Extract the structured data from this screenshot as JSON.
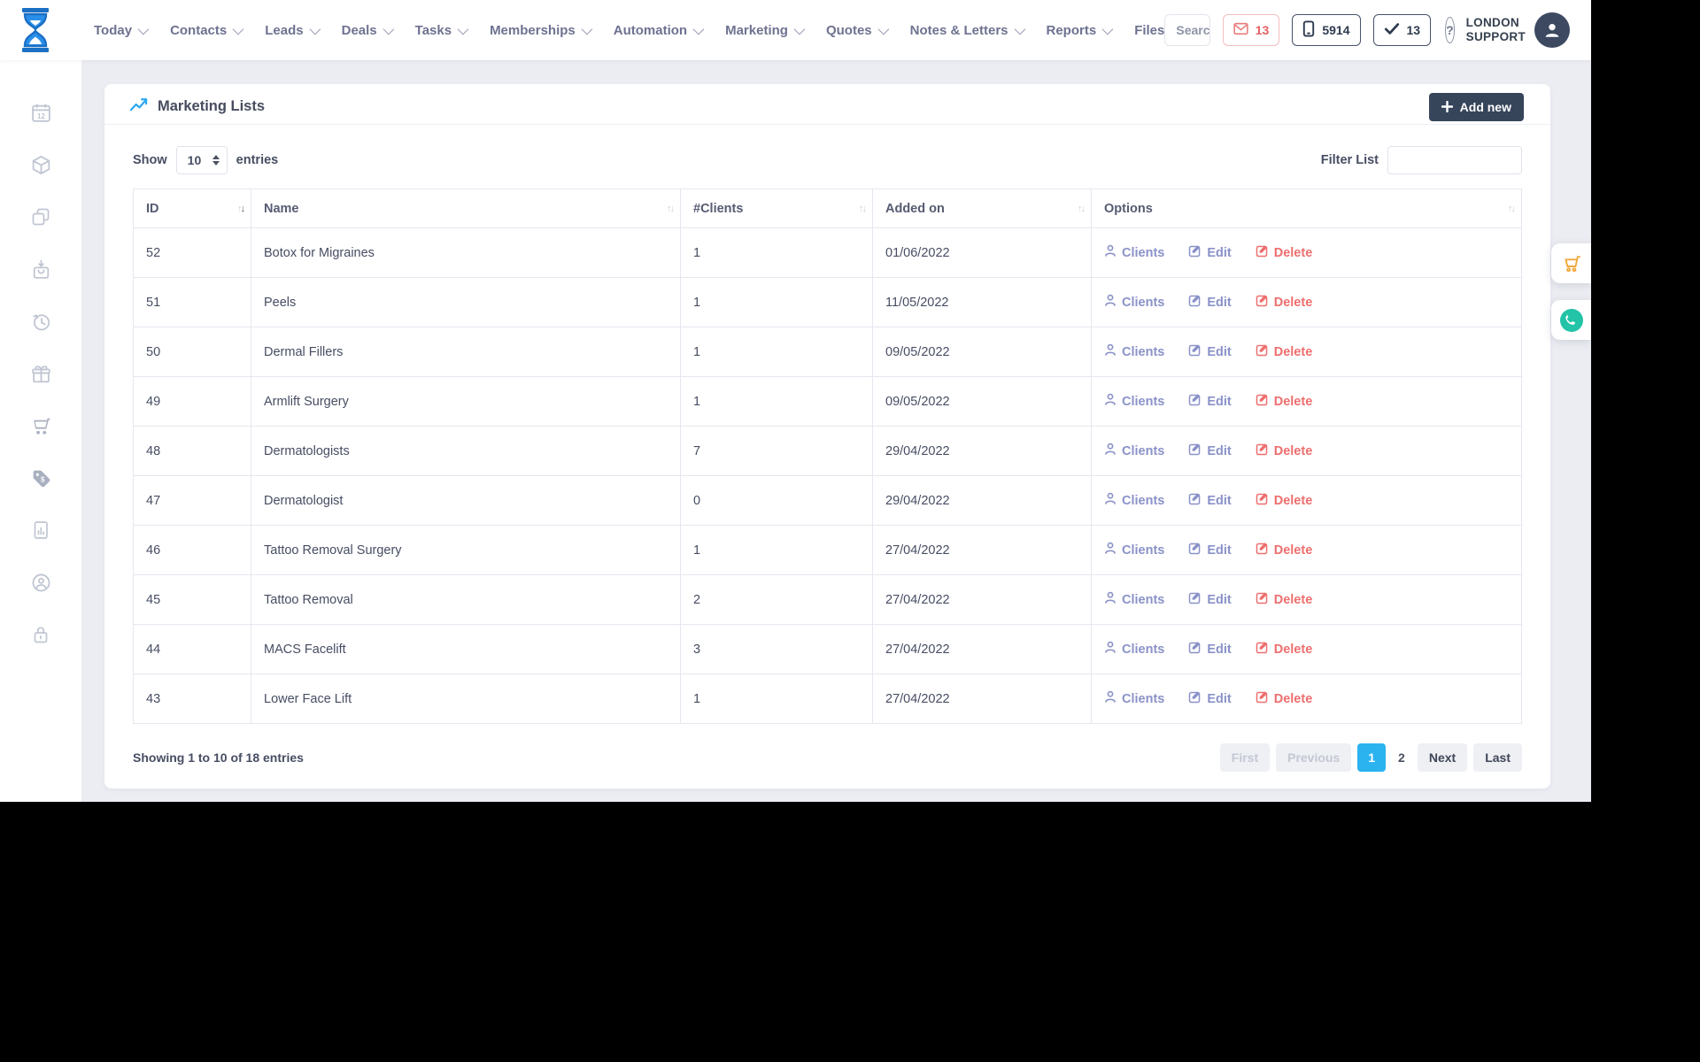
{
  "topbar": {
    "nav_items": [
      {
        "label": "Today",
        "has_menu": true
      },
      {
        "label": "Contacts",
        "has_menu": true
      },
      {
        "label": "Leads",
        "has_menu": true
      },
      {
        "label": "Deals",
        "has_menu": true
      },
      {
        "label": "Tasks",
        "has_menu": true
      },
      {
        "label": "Memberships",
        "has_menu": true
      },
      {
        "label": "Automation",
        "has_menu": true
      },
      {
        "label": "Marketing",
        "has_menu": true
      },
      {
        "label": "Quotes",
        "has_menu": true
      },
      {
        "label": "Notes & Letters",
        "has_menu": true
      },
      {
        "label": "Reports",
        "has_menu": true
      },
      {
        "label": "Files",
        "has_menu": false
      }
    ],
    "search": {
      "placeholder": "Search"
    },
    "badges": {
      "messages_count": "13",
      "phone_count": "5914",
      "tasks_count": "13"
    },
    "user_name_line1": "LONDON",
    "user_name_line2": "SUPPORT"
  },
  "sidebar": {
    "icons": [
      "calendar",
      "package",
      "copy",
      "order-in",
      "history",
      "gift",
      "cart",
      "price-tag",
      "report",
      "account-sync",
      "lock"
    ]
  },
  "page": {
    "title": "Marketing Lists",
    "add_new": "Add new",
    "show_label": "Show",
    "page_size": "10",
    "entries_label": "entries",
    "filter_label": "Filter List",
    "filter_value": ""
  },
  "table": {
    "columns": [
      {
        "label": "ID",
        "sorted": "desc"
      },
      {
        "label": "Name",
        "sorted": "none"
      },
      {
        "label": "#Clients",
        "sorted": "none"
      },
      {
        "label": "Added on",
        "sorted": "none"
      },
      {
        "label": "Options",
        "sorted": "none"
      }
    ],
    "option_labels": {
      "clients": "Clients",
      "edit": "Edit",
      "delete": "Delete"
    },
    "rows": [
      {
        "id": "52",
        "name": "Botox for Migraines",
        "clients": "1",
        "added_on": "01/06/2022"
      },
      {
        "id": "51",
        "name": "Peels",
        "clients": "1",
        "added_on": "11/05/2022"
      },
      {
        "id": "50",
        "name": "Dermal Fillers",
        "clients": "1",
        "added_on": "09/05/2022"
      },
      {
        "id": "49",
        "name": "Armlift Surgery",
        "clients": "1",
        "added_on": "09/05/2022"
      },
      {
        "id": "48",
        "name": "Dermatologists",
        "clients": "7",
        "added_on": "29/04/2022"
      },
      {
        "id": "47",
        "name": "Dermatologist",
        "clients": "0",
        "added_on": "29/04/2022"
      },
      {
        "id": "46",
        "name": "Tattoo Removal Surgery",
        "clients": "1",
        "added_on": "27/04/2022"
      },
      {
        "id": "45",
        "name": "Tattoo Removal",
        "clients": "2",
        "added_on": "27/04/2022"
      },
      {
        "id": "44",
        "name": "MACS Facelift",
        "clients": "3",
        "added_on": "27/04/2022"
      },
      {
        "id": "43",
        "name": "Lower Face Lift",
        "clients": "1",
        "added_on": "27/04/2022"
      }
    ]
  },
  "table_footer": {
    "showing_text": "Showing 1 to 10 of 18 entries",
    "pagination": {
      "first": "First",
      "previous": "Previous",
      "page_1": "1",
      "page_2": "2",
      "active_page": "1",
      "next": "Next",
      "last": "Last"
    }
  },
  "floating_actions": [
    "cart",
    "whatsapp"
  ],
  "colors": {
    "accent_blue": "#2bb3f0",
    "brand_blue": "#2a8fe8",
    "link_muted": "#8a92c8",
    "danger": "#ee6e6e",
    "dark_navy": "#36455a",
    "cart_orange": "#f2a93b",
    "whatsapp_teal": "#23c3a7"
  }
}
